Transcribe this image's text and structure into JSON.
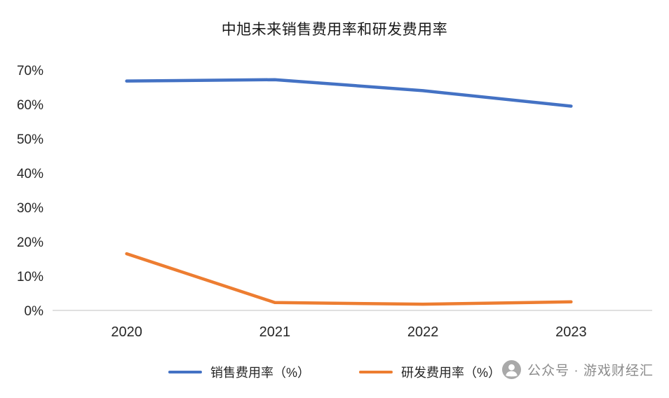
{
  "chart_data": {
    "type": "line",
    "title": "中旭未来销售费用率和研发费用率",
    "x": [
      "2020",
      "2021",
      "2022",
      "2023"
    ],
    "series": [
      {
        "name": "销售费用率（%）",
        "color": "#4472C4",
        "values": [
          66.8,
          67.2,
          64.0,
          59.5
        ]
      },
      {
        "name": "研发费用率（%）",
        "color": "#ED7D31",
        "values": [
          16.5,
          2.3,
          1.8,
          2.5
        ]
      }
    ],
    "xlabel": "",
    "ylabel": "",
    "ylim": [
      0,
      70
    ],
    "ytick_step": 10,
    "ytick_labels": [
      "0%",
      "10%",
      "20%",
      "30%",
      "40%",
      "50%",
      "60%",
      "70%"
    ],
    "grid": false,
    "legend_position": "bottom",
    "axis_line_color": "#d6d6d6"
  },
  "watermark": {
    "text": "公众号 · 游戏财经汇",
    "icon": "person-icon"
  }
}
